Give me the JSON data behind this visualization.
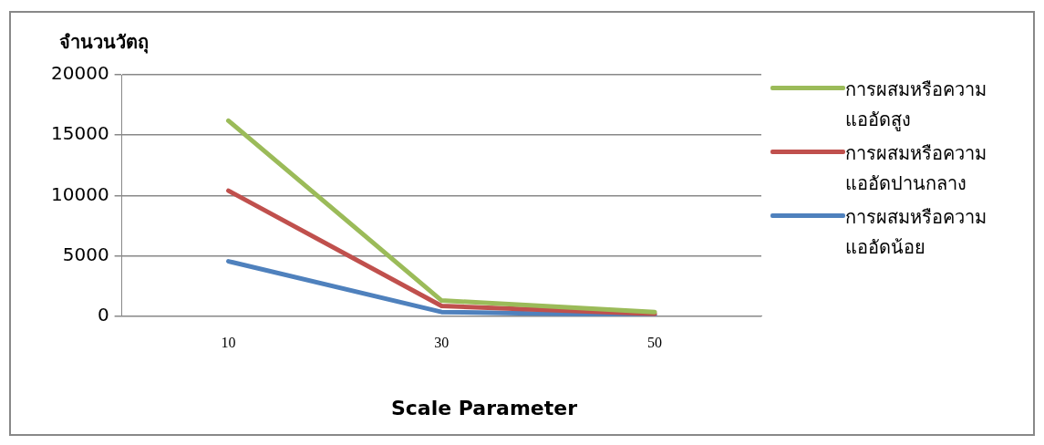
{
  "chart_data": {
    "type": "line",
    "ylabel": "จำนวนวัตถุ",
    "xlabel": "Scale Parameter",
    "categories": [
      "10",
      "30",
      "50"
    ],
    "series": [
      {
        "name": "การผสมหรือความแออัดสูง",
        "color": "#9bbb59",
        "values": [
          16200,
          1300,
          350
        ]
      },
      {
        "name": "การผสมหรือความแออัดปานกลาง",
        "color": "#c0504d",
        "values": [
          10400,
          850,
          200
        ]
      },
      {
        "name": "การผสมหรือความแออัดน้อย",
        "color": "#4f81bd",
        "values": [
          4550,
          350,
          70
        ]
      }
    ],
    "ylim": [
      0,
      20000
    ],
    "yticks": [
      0,
      5000,
      10000,
      15000,
      20000
    ],
    "grid": "y",
    "legend": "right",
    "marker": "none",
    "line_style": "solid"
  }
}
